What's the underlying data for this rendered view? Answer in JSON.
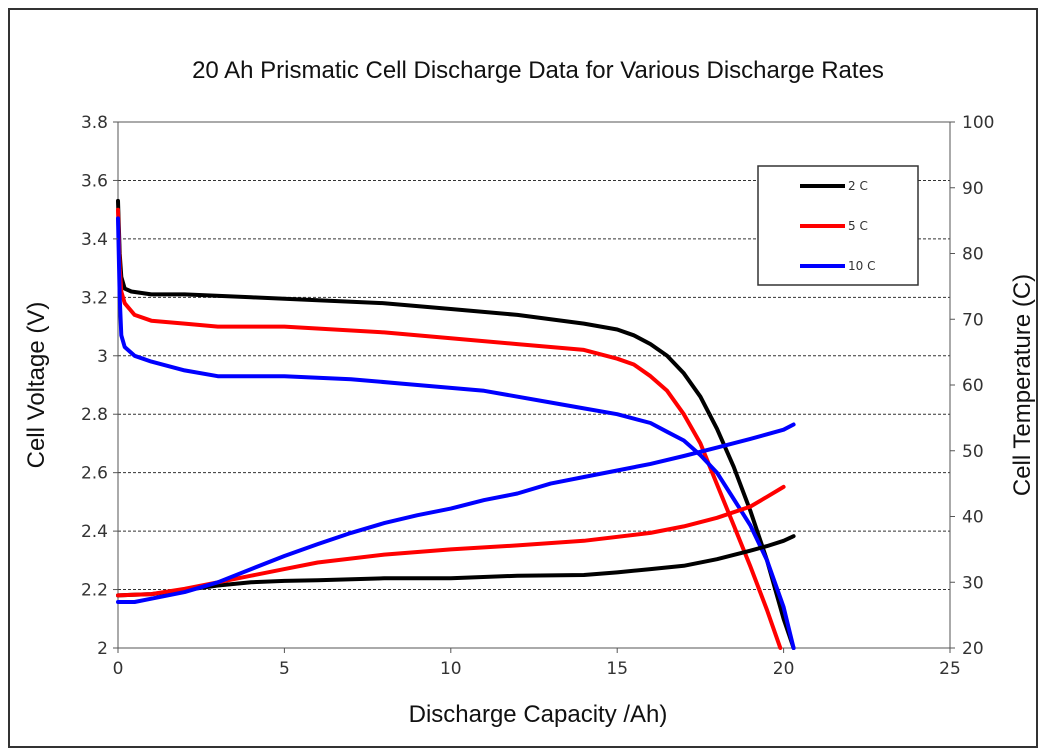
{
  "chart_data": {
    "type": "line",
    "title": "20 Ah Prismatic Cell Discharge Data for Various Discharge Rates",
    "xlabel": "Discharge Capacity /Ah)",
    "ylabel": "Cell Voltage (V)",
    "y2label": "Cell Temperature (C)",
    "xlim": [
      0,
      25
    ],
    "ylim": [
      2,
      3.8
    ],
    "y2lim": [
      20,
      100
    ],
    "xticks": [
      "0",
      "5",
      "10",
      "15",
      "20",
      "25"
    ],
    "yticks": [
      "2",
      "2.2",
      "2.4",
      "2.6",
      "2.8",
      "3",
      "3.2",
      "3.4",
      "3.6",
      "3.8"
    ],
    "y2ticks": [
      "20",
      "30",
      "40",
      "50",
      "60",
      "70",
      "80",
      "90",
      "100"
    ],
    "grid": "horizontal dashed",
    "legend_position": "top-right",
    "legend": [
      {
        "label": "2 C",
        "color": "#000000"
      },
      {
        "label": "5 C",
        "color": "#ff0000"
      },
      {
        "label": "10 C",
        "color": "#0000ff"
      }
    ],
    "series": [
      {
        "name": "2 C",
        "color": "#000000",
        "axis": "voltage",
        "x": [
          0,
          0.05,
          0.1,
          0.2,
          0.4,
          1,
          2,
          4,
          6,
          8,
          10,
          12,
          14,
          15,
          15.5,
          16,
          16.5,
          17,
          17.5,
          18,
          18.5,
          19,
          19.5,
          20,
          20.3
        ],
        "y": [
          3.53,
          3.35,
          3.27,
          3.23,
          3.22,
          3.21,
          3.21,
          3.2,
          3.19,
          3.18,
          3.16,
          3.14,
          3.11,
          3.09,
          3.07,
          3.04,
          3.0,
          2.94,
          2.86,
          2.75,
          2.62,
          2.47,
          2.3,
          2.1,
          2.0
        ]
      },
      {
        "name": "5 C",
        "color": "#ff0000",
        "axis": "voltage",
        "x": [
          0,
          0.05,
          0.1,
          0.2,
          0.5,
          1,
          2,
          3,
          5,
          8,
          10,
          12,
          14,
          15,
          15.5,
          16,
          16.5,
          17,
          17.5,
          18,
          18.5,
          19,
          19.5,
          19.9
        ],
        "y": [
          3.5,
          3.3,
          3.22,
          3.18,
          3.14,
          3.12,
          3.11,
          3.1,
          3.1,
          3.08,
          3.06,
          3.04,
          3.02,
          2.99,
          2.97,
          2.93,
          2.88,
          2.8,
          2.7,
          2.56,
          2.42,
          2.28,
          2.13,
          2.0
        ]
      },
      {
        "name": "10 C",
        "color": "#0000ff",
        "axis": "voltage",
        "x": [
          0,
          0.05,
          0.1,
          0.2,
          0.5,
          1,
          2,
          3,
          5,
          7,
          9,
          11,
          13,
          14,
          15,
          16,
          16.5,
          17,
          17.5,
          18,
          18.5,
          19,
          19.5,
          20,
          20.3
        ],
        "y": [
          3.47,
          3.2,
          3.07,
          3.03,
          3.0,
          2.98,
          2.95,
          2.93,
          2.93,
          2.92,
          2.9,
          2.88,
          2.84,
          2.82,
          2.8,
          2.77,
          2.74,
          2.71,
          2.66,
          2.6,
          2.51,
          2.42,
          2.3,
          2.14,
          2.0
        ]
      },
      {
        "name": "2 C",
        "color": "#000000",
        "axis": "temperature",
        "x": [
          0,
          1,
          2,
          3,
          4,
          5,
          6,
          8,
          10,
          12,
          14,
          15,
          16,
          17,
          18,
          19,
          19.5,
          20,
          20.3
        ],
        "y": [
          28,
          28.2,
          28.8,
          29.5,
          30,
          30.2,
          30.3,
          30.6,
          30.6,
          31,
          31.1,
          31.5,
          32,
          32.5,
          33.5,
          34.8,
          35.5,
          36.3,
          37
        ]
      },
      {
        "name": "5 C",
        "color": "#ff0000",
        "axis": "temperature",
        "x": [
          0,
          1,
          2,
          3,
          4,
          5,
          6,
          8,
          10,
          12,
          14,
          16,
          17,
          18,
          19,
          19.5,
          20
        ],
        "y": [
          28,
          28.2,
          29,
          30,
          31,
          32,
          33,
          34.2,
          35,
          35.6,
          36.3,
          37.5,
          38.5,
          39.8,
          41.5,
          43,
          44.5
        ]
      },
      {
        "name": "10 C",
        "color": "#0000ff",
        "axis": "temperature",
        "x": [
          0,
          0.5,
          1,
          2,
          3,
          4,
          5,
          6,
          7,
          8,
          9,
          10,
          11,
          12,
          13,
          14,
          15,
          16,
          17,
          18,
          19,
          19.5,
          20,
          20.3
        ],
        "y": [
          27,
          27,
          27.5,
          28.5,
          30,
          32,
          34,
          35.8,
          37.5,
          39,
          40.2,
          41.2,
          42.5,
          43.5,
          45,
          46,
          47,
          48,
          49.2,
          50.5,
          51.8,
          52.5,
          53.2,
          54
        ]
      }
    ]
  }
}
